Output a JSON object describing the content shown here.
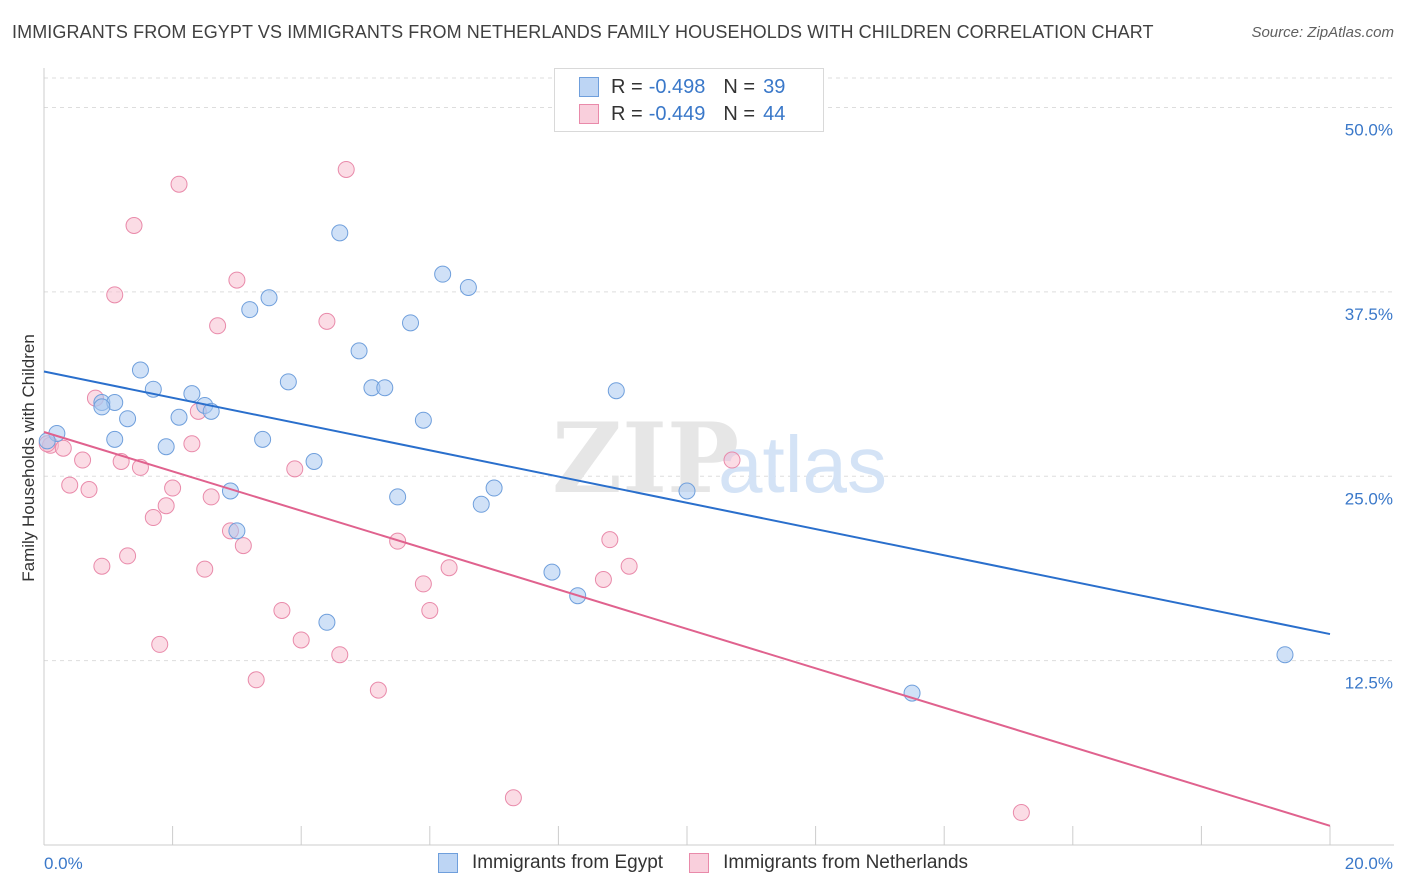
{
  "title": "IMMIGRANTS FROM EGYPT VS IMMIGRANTS FROM NETHERLANDS FAMILY HOUSEHOLDS WITH CHILDREN CORRELATION CHART",
  "source": "Source: ZipAtlas.com",
  "legend": {
    "rows": [
      {
        "r_label": "R =",
        "r_value": "-0.498",
        "n_label": "N =",
        "n_value": "39"
      },
      {
        "r_label": "R =",
        "r_value": "-0.449",
        "n_label": "N =",
        "n_value": "44"
      }
    ]
  },
  "bottom_legend": {
    "egypt": "Immigrants from Egypt",
    "netherlands": "Immigrants from Netherlands"
  },
  "colors": {
    "egypt_fill": "#a9c8f0",
    "egypt_stroke": "#6f9fdc",
    "egypt_line": "#2a6fcc",
    "netherlands_fill": "#f7bfd0",
    "netherlands_stroke": "#e98aaa",
    "netherlands_line": "#e0628e",
    "tick_label": "#3a78c9",
    "grid": "#dddddd"
  },
  "chart_data": {
    "type": "scatter",
    "title": "IMMIGRANTS FROM EGYPT VS IMMIGRANTS FROM NETHERLANDS FAMILY HOUSEHOLDS WITH CHILDREN CORRELATION CHART",
    "xlabel": "",
    "ylabel": "Family Households with Children",
    "xlim": [
      0,
      20
    ],
    "ylim": [
      0,
      52
    ],
    "x_tick_labels": [
      "0.0%",
      "20.0%"
    ],
    "y_ticks": [
      12.5,
      25.0,
      37.5,
      50.0
    ],
    "y_tick_labels": [
      "12.5%",
      "25.0%",
      "37.5%",
      "50.0%"
    ],
    "grid": "horizontal dashed",
    "watermark": {
      "bold": "ZIP",
      "light": "atlas"
    },
    "series": [
      {
        "name": "Immigrants from Egypt",
        "color": "#a9c8f0",
        "trend": {
          "x": [
            0,
            20
          ],
          "y": [
            32.1,
            14.3
          ]
        },
        "points": [
          [
            0.2,
            27.9
          ],
          [
            0.9,
            30.0
          ],
          [
            1.1,
            30.0
          ],
          [
            0.9,
            29.7
          ],
          [
            1.3,
            28.9
          ],
          [
            1.1,
            27.5
          ],
          [
            1.5,
            32.2
          ],
          [
            1.7,
            30.9
          ],
          [
            1.9,
            27.0
          ],
          [
            2.1,
            29.0
          ],
          [
            2.3,
            30.6
          ],
          [
            2.5,
            29.8
          ],
          [
            2.6,
            29.4
          ],
          [
            2.9,
            24.0
          ],
          [
            3.0,
            21.3
          ],
          [
            3.2,
            36.3
          ],
          [
            3.4,
            27.5
          ],
          [
            3.5,
            37.1
          ],
          [
            3.8,
            31.4
          ],
          [
            4.2,
            26.0
          ],
          [
            4.4,
            15.1
          ],
          [
            4.6,
            41.5
          ],
          [
            4.9,
            33.5
          ],
          [
            5.1,
            31.0
          ],
          [
            5.3,
            31.0
          ],
          [
            5.5,
            23.6
          ],
          [
            5.7,
            35.4
          ],
          [
            5.9,
            28.8
          ],
          [
            6.2,
            38.7
          ],
          [
            6.6,
            37.8
          ],
          [
            6.8,
            23.1
          ],
          [
            7.0,
            24.2
          ],
          [
            7.9,
            18.5
          ],
          [
            8.3,
            16.9
          ],
          [
            8.9,
            30.8
          ],
          [
            10.0,
            24.0
          ],
          [
            13.5,
            10.3
          ],
          [
            19.3,
            12.9
          ],
          [
            0.05,
            27.4
          ]
        ]
      },
      {
        "name": "Immigrants from Netherlands",
        "color": "#f7bfd0",
        "trend": {
          "x": [
            0,
            20
          ],
          "y": [
            28.0,
            1.3
          ]
        },
        "points": [
          [
            0.1,
            27.1
          ],
          [
            0.3,
            26.9
          ],
          [
            0.4,
            24.4
          ],
          [
            0.6,
            26.1
          ],
          [
            0.7,
            24.1
          ],
          [
            0.8,
            30.3
          ],
          [
            0.9,
            18.9
          ],
          [
            1.2,
            26.0
          ],
          [
            1.3,
            19.6
          ],
          [
            1.4,
            42.0
          ],
          [
            1.1,
            37.3
          ],
          [
            1.5,
            25.6
          ],
          [
            1.7,
            22.2
          ],
          [
            1.8,
            13.6
          ],
          [
            1.9,
            23.0
          ],
          [
            2.0,
            24.2
          ],
          [
            2.1,
            44.8
          ],
          [
            2.3,
            27.2
          ],
          [
            2.4,
            29.4
          ],
          [
            2.5,
            18.7
          ],
          [
            2.6,
            23.6
          ],
          [
            2.7,
            35.2
          ],
          [
            2.9,
            21.3
          ],
          [
            3.0,
            38.3
          ],
          [
            3.1,
            20.3
          ],
          [
            3.3,
            11.2
          ],
          [
            3.7,
            15.9
          ],
          [
            3.9,
            25.5
          ],
          [
            4.0,
            13.9
          ],
          [
            4.4,
            35.5
          ],
          [
            4.6,
            12.9
          ],
          [
            4.7,
            45.8
          ],
          [
            5.2,
            10.5
          ],
          [
            5.5,
            20.6
          ],
          [
            5.9,
            17.7
          ],
          [
            6.0,
            15.9
          ],
          [
            6.3,
            18.8
          ],
          [
            7.3,
            3.2
          ],
          [
            8.7,
            18.0
          ],
          [
            8.8,
            20.7
          ],
          [
            9.1,
            18.9
          ],
          [
            10.7,
            26.1
          ],
          [
            15.2,
            2.2
          ],
          [
            0.05,
            27.2
          ]
        ]
      }
    ]
  }
}
